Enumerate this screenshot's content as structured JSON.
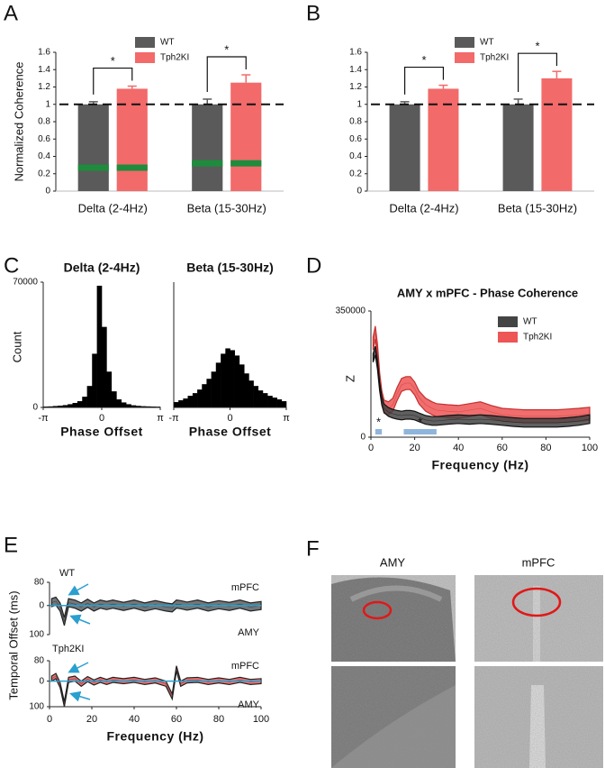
{
  "chart_data": [
    {
      "type": "bar",
      "panel": "A",
      "categories": [
        "Delta (2-4Hz)",
        "Beta (15-30Hz)"
      ],
      "series": [
        {
          "name": "WT",
          "color": "#5a5a5a",
          "values": [
            1.0,
            1.0
          ],
          "errors": [
            0.03,
            0.06
          ],
          "shuffle_values": [
            0.27,
            0.32
          ]
        },
        {
          "name": "Tph2KI",
          "color": "#f26a6a",
          "values": [
            1.18,
            1.25
          ],
          "errors": [
            0.03,
            0.09
          ],
          "shuffle_values": [
            0.27,
            0.32
          ]
        }
      ],
      "shuffle_color": "#1e8c3c",
      "ylim": [
        0,
        1.6
      ],
      "yticks": [
        0,
        0.2,
        0.4,
        0.6,
        0.8,
        1,
        1.2,
        1.4,
        1.6
      ],
      "ylabel": "Normalized Coherence",
      "reference_line": 1,
      "significance_labels": [
        "*",
        "*"
      ],
      "legend": "top-center"
    },
    {
      "type": "bar",
      "panel": "B",
      "categories": [
        "Delta (2-4Hz)",
        "Beta (15-30Hz)"
      ],
      "series": [
        {
          "name": "WT",
          "color": "#5a5a5a",
          "values": [
            1.0,
            1.0
          ],
          "errors": [
            0.03,
            0.06
          ]
        },
        {
          "name": "Tph2KI",
          "color": "#f26a6a",
          "values": [
            1.18,
            1.3
          ],
          "errors": [
            0.04,
            0.08
          ]
        }
      ],
      "ylim": [
        0,
        1.6
      ],
      "yticks": [
        0,
        0.2,
        0.4,
        0.6,
        0.8,
        1,
        1.2,
        1.4,
        1.6
      ],
      "reference_line": 1,
      "significance_labels": [
        "*",
        "*"
      ],
      "legend": "top-center"
    },
    {
      "type": "histogram",
      "panel": "C",
      "title": "Delta (2-4Hz)",
      "color": "#000000",
      "bins": [
        -3.14,
        -2.88,
        -2.62,
        -2.36,
        -2.09,
        -1.83,
        -1.57,
        -1.31,
        -1.05,
        -0.79,
        -0.52,
        -0.26,
        0,
        0.26,
        0.52,
        0.79,
        1.05,
        1.31,
        1.57,
        1.83,
        2.09,
        2.36,
        2.62,
        2.88,
        3.14
      ],
      "values": [
        500,
        600,
        800,
        1000,
        1300,
        1800,
        2500,
        3500,
        6000,
        12000,
        30000,
        68000,
        45000,
        20000,
        9000,
        4500,
        2800,
        1800,
        1200,
        900,
        700,
        600,
        500,
        450
      ],
      "xlim": [
        -3.14,
        3.14
      ],
      "xticks": [
        {
          "value": -3.14,
          "label": "-π"
        },
        0,
        {
          "value": 3.14,
          "label": "π"
        }
      ],
      "ylim": [
        0,
        70000
      ],
      "yticks": [
        0,
        70000
      ],
      "ylabel": "Count",
      "xlabel": "Phase Offset"
    },
    {
      "type": "histogram",
      "title": "Beta (15-30Hz)",
      "color": "#000000",
      "bins": [
        -3.14,
        -2.88,
        -2.62,
        -2.36,
        -2.09,
        -1.83,
        -1.57,
        -1.31,
        -1.05,
        -0.79,
        -0.52,
        -0.26,
        0,
        0.26,
        0.52,
        0.79,
        1.05,
        1.31,
        1.57,
        1.83,
        2.09,
        2.36,
        2.62,
        2.88,
        3.14
      ],
      "values": [
        3000,
        4000,
        5000,
        6500,
        8000,
        10000,
        13000,
        16000,
        20000,
        25000,
        30000,
        33000,
        32000,
        29000,
        24000,
        19000,
        15000,
        12000,
        9500,
        8000,
        6500,
        5500,
        4500,
        3500
      ],
      "xlim": [
        -3.14,
        3.14
      ],
      "xticks": [
        {
          "value": -3.14,
          "label": "-π"
        },
        0,
        {
          "value": 3.14,
          "label": "π"
        }
      ],
      "ylim": [
        0,
        70000
      ],
      "xlabel": "Phase Offset"
    },
    {
      "type": "line",
      "panel": "D",
      "title": "AMY x mPFC - Phase Coherence",
      "x": [
        1,
        2,
        3,
        4,
        5,
        6,
        8,
        10,
        12,
        14,
        16,
        18,
        20,
        22,
        25,
        28,
        30,
        35,
        40,
        45,
        50,
        55,
        60,
        65,
        70,
        75,
        80,
        85,
        90,
        95,
        100
      ],
      "series": [
        {
          "name": "WT",
          "color": "#444444",
          "error": 12000,
          "values": [
            220000,
            240000,
            200000,
            140000,
            100000,
            80000,
            70000,
            65000,
            62000,
            60000,
            62000,
            62000,
            60000,
            55000,
            48000,
            45000,
            45000,
            48000,
            50000,
            48000,
            50000,
            48000,
            45000,
            42000,
            40000,
            40000,
            40000,
            40000,
            42000,
            45000,
            50000
          ]
        },
        {
          "name": "Tph2KI",
          "color": "#ee5555",
          "error": 18000,
          "values": [
            260000,
            290000,
            240000,
            160000,
            110000,
            85000,
            80000,
            90000,
            120000,
            145000,
            150000,
            150000,
            135000,
            110000,
            90000,
            80000,
            75000,
            72000,
            70000,
            75000,
            80000,
            70000,
            62000,
            60000,
            58000,
            58000,
            58000,
            58000,
            60000,
            62000,
            65000
          ]
        }
      ],
      "xlim": [
        0,
        100
      ],
      "xticks": [
        0,
        20,
        40,
        60,
        80,
        100
      ],
      "ylim": [
        0,
        350000
      ],
      "yticks": [
        0,
        350000
      ],
      "xlabel": "Frequency (Hz)",
      "ylabel": "Z",
      "significance": [
        {
          "xrange": [
            2,
            5
          ],
          "label": "*"
        },
        {
          "xrange": [
            15,
            30
          ],
          "label": "*"
        }
      ],
      "significance_color": "#8fb5dc",
      "legend": "top-right"
    },
    {
      "type": "area",
      "panel": "E",
      "title": "WT",
      "top_label": "mPFC",
      "bottom_label": "AMY",
      "x": [
        1,
        3,
        5,
        7,
        9,
        12,
        15,
        18,
        21,
        24,
        27,
        30,
        35,
        40,
        45,
        50,
        55,
        58,
        60,
        62,
        65,
        70,
        75,
        80,
        85,
        90,
        95,
        100
      ],
      "series": [
        {
          "color": "#585f63",
          "error": 14,
          "values": [
            10,
            15,
            -5,
            -55,
            10,
            5,
            -5,
            8,
            -5,
            5,
            0,
            5,
            -3,
            5,
            -5,
            3,
            -5,
            -8,
            5,
            3,
            -2,
            5,
            -5,
            3,
            -3,
            5,
            -5,
            0
          ]
        }
      ],
      "xlim": [
        0,
        100
      ],
      "ylim": [
        -100,
        80
      ],
      "yticks": [
        80,
        0,
        {
          "value": -100,
          "label": "100"
        }
      ],
      "ylabel": "Temporal Offset (ms)"
    },
    {
      "type": "area",
      "title": "Tph2KI",
      "top_label": "mPFC",
      "bottom_label": "AMY",
      "x": [
        1,
        3,
        5,
        7,
        9,
        12,
        15,
        18,
        21,
        24,
        27,
        30,
        35,
        40,
        45,
        50,
        55,
        58,
        60,
        62,
        65,
        70,
        75,
        80,
        85,
        90,
        95,
        100
      ],
      "series": [
        {
          "color": "#e85a5a",
          "error": 10,
          "values": [
            10,
            20,
            -15,
            -90,
            5,
            10,
            -10,
            8,
            -5,
            5,
            -3,
            5,
            0,
            5,
            -3,
            3,
            -10,
            -60,
            50,
            -10,
            3,
            5,
            -3,
            3,
            -3,
            5,
            -3,
            0
          ]
        }
      ],
      "xlim": [
        0,
        100
      ],
      "xticks": [
        0,
        20,
        40,
        60,
        80,
        100
      ],
      "ylim": [
        -100,
        80
      ],
      "yticks": [
        80,
        0,
        {
          "value": -100,
          "label": "100"
        }
      ],
      "xlabel": "Frequency (Hz)"
    }
  ],
  "panel_f": {
    "panel": "F",
    "labels": [
      "AMY",
      "mPFC"
    ]
  }
}
